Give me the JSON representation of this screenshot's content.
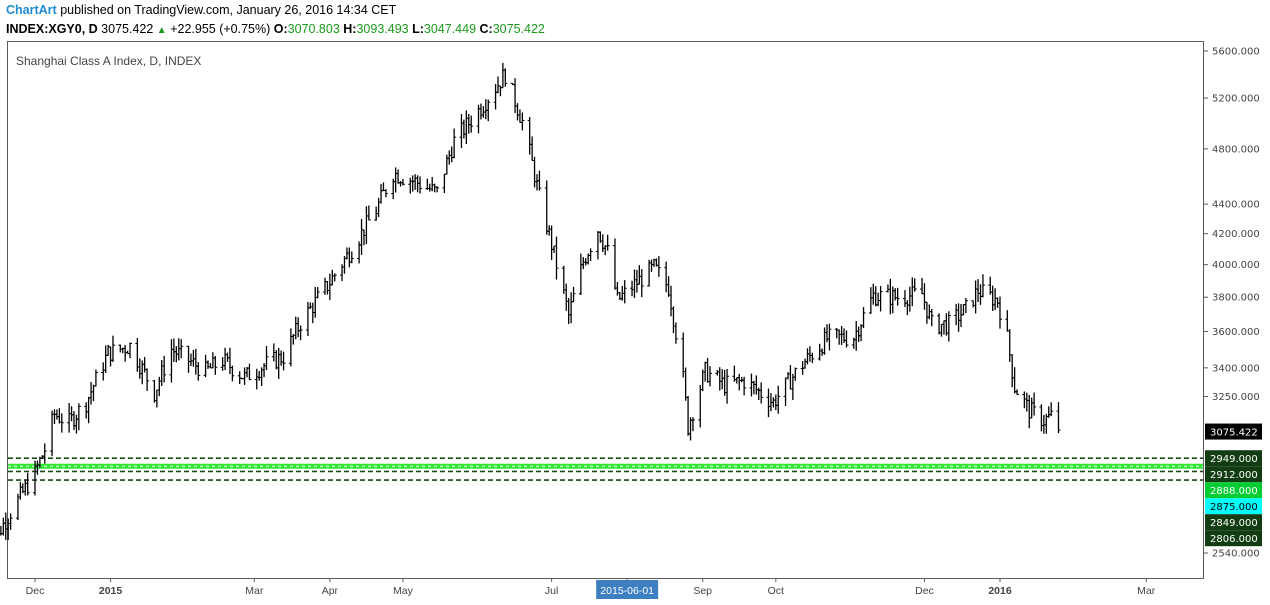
{
  "header": {
    "brand": "ChartArt",
    "published": "published on TradingView.com, January 26, 2016 14:34 CET",
    "symbol": "INDEX:XGY0, D",
    "last": "3075.422",
    "change_arrow": "▲",
    "change": "+22.955 (+0.75%)",
    "open_label": "O:",
    "open": "3070.803",
    "high_label": "H:",
    "high": "3093.493",
    "low_label": "L:",
    "low": "3047.449",
    "close_label": "C:",
    "close": "3075.422"
  },
  "colors": {
    "brand": "#1f8bd1",
    "bars": "#000000",
    "positive": "#1a9a1a",
    "support_dash": "#1b4d1b",
    "support_bright": "#33e633",
    "label_dark_green": "#123d12",
    "label_green": "#00cc33",
    "label_cyan": "#00ffff"
  },
  "chart_data": {
    "type": "ohlc",
    "title": "Shanghai Class A Index, D, INDEX",
    "scale": "log",
    "ylim": [
      2480,
      5650
    ],
    "y_ticks": [
      "2540.000",
      "3250.000",
      "3400.000",
      "3600.000",
      "3800.000",
      "4000.000",
      "4200.000",
      "4400.000",
      "4800.000",
      "5200.000",
      "5600.000"
    ],
    "x_ticks": [
      {
        "label": "Dec",
        "date": "2014-12-01",
        "bold": false
      },
      {
        "label": "2015",
        "date": "2015-01-01",
        "bold": true
      },
      {
        "label": "Mar",
        "date": "2015-03-01",
        "bold": false
      },
      {
        "label": "Apr",
        "date": "2015-04-01",
        "bold": false
      },
      {
        "label": "May",
        "date": "2015-05-01",
        "bold": false
      },
      {
        "label": "Jul",
        "date": "2015-07-01",
        "bold": false
      },
      {
        "label": "2015-06-01",
        "date": "2015-08-01",
        "bold": false,
        "highlight": true
      },
      {
        "label": "Sep",
        "date": "2015-09-01",
        "bold": false
      },
      {
        "label": "Oct",
        "date": "2015-10-01",
        "bold": false
      },
      {
        "label": "Dec",
        "date": "2015-12-01",
        "bold": false
      },
      {
        "label": "2016",
        "date": "2016-01-01",
        "bold": true
      },
      {
        "label": "Mar",
        "date": "2016-03-01",
        "bold": false
      }
    ],
    "last_price": "3075.422",
    "support_levels": [
      {
        "value": 2949,
        "label": "2949.000",
        "style": "dashed",
        "label_color": "#123d12"
      },
      {
        "value": 2912,
        "label": "2912.000",
        "style": "solid-bright",
        "label_color": "#123d12"
      },
      {
        "value": 2888,
        "label": "2888.000",
        "style": "dashed",
        "label_color": "#00cc33"
      },
      {
        "value": 2875,
        "label": "2875.000",
        "style": "none",
        "label_color": "#00ffff"
      },
      {
        "value": 2849,
        "label": "2849.000",
        "style": "dashed",
        "label_color": "#123d12"
      },
      {
        "value": 2806,
        "label": "2806.000",
        "style": "none",
        "label_color": "#123d12"
      }
    ],
    "series_keypoints": [
      [
        "2014-11-10",
        2560
      ],
      [
        "2014-11-17",
        2640
      ],
      [
        "2014-11-24",
        2760
      ],
      [
        "2014-12-01",
        2880
      ],
      [
        "2014-12-05",
        2990
      ],
      [
        "2014-12-09",
        3160
      ],
      [
        "2014-12-15",
        3120
      ],
      [
        "2014-12-22",
        3220
      ],
      [
        "2014-12-31",
        3480
      ],
      [
        "2015-01-09",
        3520
      ],
      [
        "2015-01-19",
        3270
      ],
      [
        "2015-01-26",
        3500
      ],
      [
        "2015-02-09",
        3380
      ],
      [
        "2015-02-16",
        3440
      ],
      [
        "2015-02-25",
        3350
      ],
      [
        "2015-03-06",
        3420
      ],
      [
        "2015-03-13",
        3460
      ],
      [
        "2015-03-20",
        3650
      ],
      [
        "2015-03-31",
        3870
      ],
      [
        "2015-04-10",
        4100
      ],
      [
        "2015-04-20",
        4360
      ],
      [
        "2015-04-27",
        4620
      ],
      [
        "2015-05-06",
        4560
      ],
      [
        "2015-05-15",
        4480
      ],
      [
        "2015-05-22",
        4860
      ],
      [
        "2015-05-28",
        5000
      ],
      [
        "2015-06-03",
        5150
      ],
      [
        "2015-06-12",
        5400
      ],
      [
        "2015-06-19",
        5010
      ],
      [
        "2015-06-26",
        4450
      ],
      [
        "2015-07-03",
        4000
      ],
      [
        "2015-07-08",
        3690
      ],
      [
        "2015-07-14",
        4020
      ],
      [
        "2015-07-20",
        4230
      ],
      [
        "2015-07-24",
        4080
      ],
      [
        "2015-07-28",
        3780
      ],
      [
        "2015-08-05",
        3890
      ],
      [
        "2015-08-12",
        3980
      ],
      [
        "2015-08-18",
        3860
      ],
      [
        "2015-08-24",
        3340
      ],
      [
        "2015-08-26",
        3100
      ],
      [
        "2015-09-02",
        3380
      ],
      [
        "2015-09-10",
        3310
      ],
      [
        "2015-09-18",
        3330
      ],
      [
        "2015-09-30",
        3220
      ],
      [
        "2015-10-12",
        3420
      ],
      [
        "2015-10-22",
        3560
      ],
      [
        "2015-11-02",
        3570
      ],
      [
        "2015-11-10",
        3810
      ],
      [
        "2015-11-20",
        3800
      ],
      [
        "2015-11-30",
        3820
      ],
      [
        "2015-12-04",
        3640
      ],
      [
        "2015-12-11",
        3640
      ],
      [
        "2015-12-18",
        3730
      ],
      [
        "2015-12-23",
        3840
      ],
      [
        "2015-12-31",
        3780
      ],
      [
        "2016-01-04",
        3560
      ],
      [
        "2016-01-07",
        3300
      ],
      [
        "2016-01-13",
        3180
      ],
      [
        "2016-01-19",
        3130
      ],
      [
        "2016-01-22",
        3150
      ],
      [
        "2016-01-26",
        3075
      ]
    ]
  }
}
